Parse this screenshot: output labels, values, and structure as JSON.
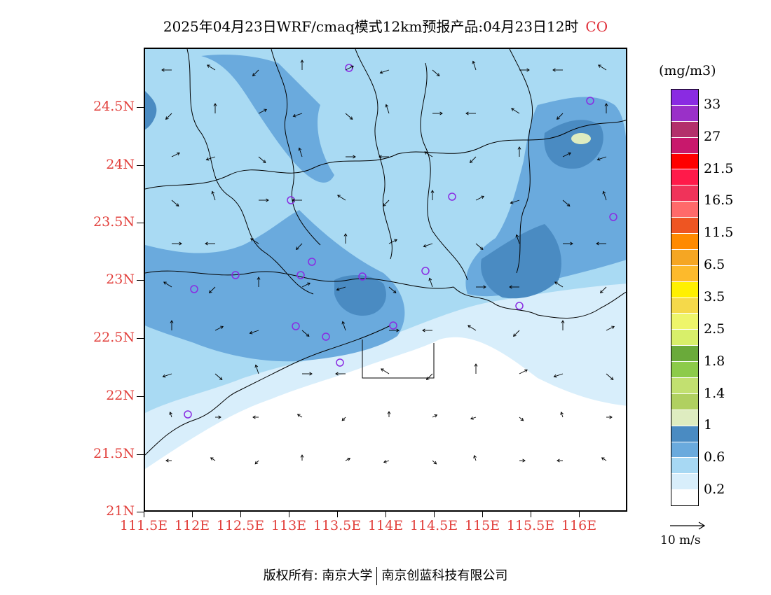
{
  "title": {
    "main": "2025年04月23日WRF/cmaq模式12km预报产品:04月23日12时",
    "species": "CO",
    "species_color": "#e0303a"
  },
  "axes": {
    "lat_labels": [
      "24.5N",
      "24N",
      "23.5N",
      "23N",
      "22.5N",
      "22N",
      "21.5N",
      "21N"
    ],
    "lon_labels": [
      "111.5E",
      "112E",
      "112.5E",
      "113E",
      "113.5E",
      "114E",
      "114.5E",
      "115E",
      "115.5E",
      "116E"
    ],
    "label_color": "#e2413d"
  },
  "legend": {
    "unit": "(mg/m3)",
    "colors": [
      "#8a2be2",
      "#9a30c8",
      "#b3306b",
      "#c8186c",
      "#ff0000",
      "#ff1a4a",
      "#f0335a",
      "#ff6a6a",
      "#ee5522",
      "#ff8a00",
      "#f5a623",
      "#fdba2c",
      "#fff000",
      "#f5d94a",
      "#eef56a",
      "#d8ef6a",
      "#6aaa3a",
      "#8ccb4a",
      "#c2e070",
      "#b0d060",
      "#deecc0",
      "#4a8bc2",
      "#6aaadd",
      "#a7d8f3",
      "#d8eefb",
      "#ffffff"
    ],
    "labels": [
      "33",
      "27",
      "21.5",
      "16.5",
      "11.5",
      "6.5",
      "3.5",
      "2.5",
      "1.8",
      "1.4",
      "1",
      "0.6",
      "0.2"
    ],
    "wind_reference": "10 m/s"
  },
  "map": {
    "fill_colors": {
      "lowest": "#ffffff",
      "low": "#d8eefb",
      "mid": "#a9daf3",
      "high": "#6aaadd",
      "higher": "#4a8bc2",
      "peak": "#deecc0"
    },
    "station_marker_color": "#8a2be2"
  },
  "footer": {
    "left": "版权所有: 南京大学",
    "right": "南京创蓝科技有限公司"
  }
}
